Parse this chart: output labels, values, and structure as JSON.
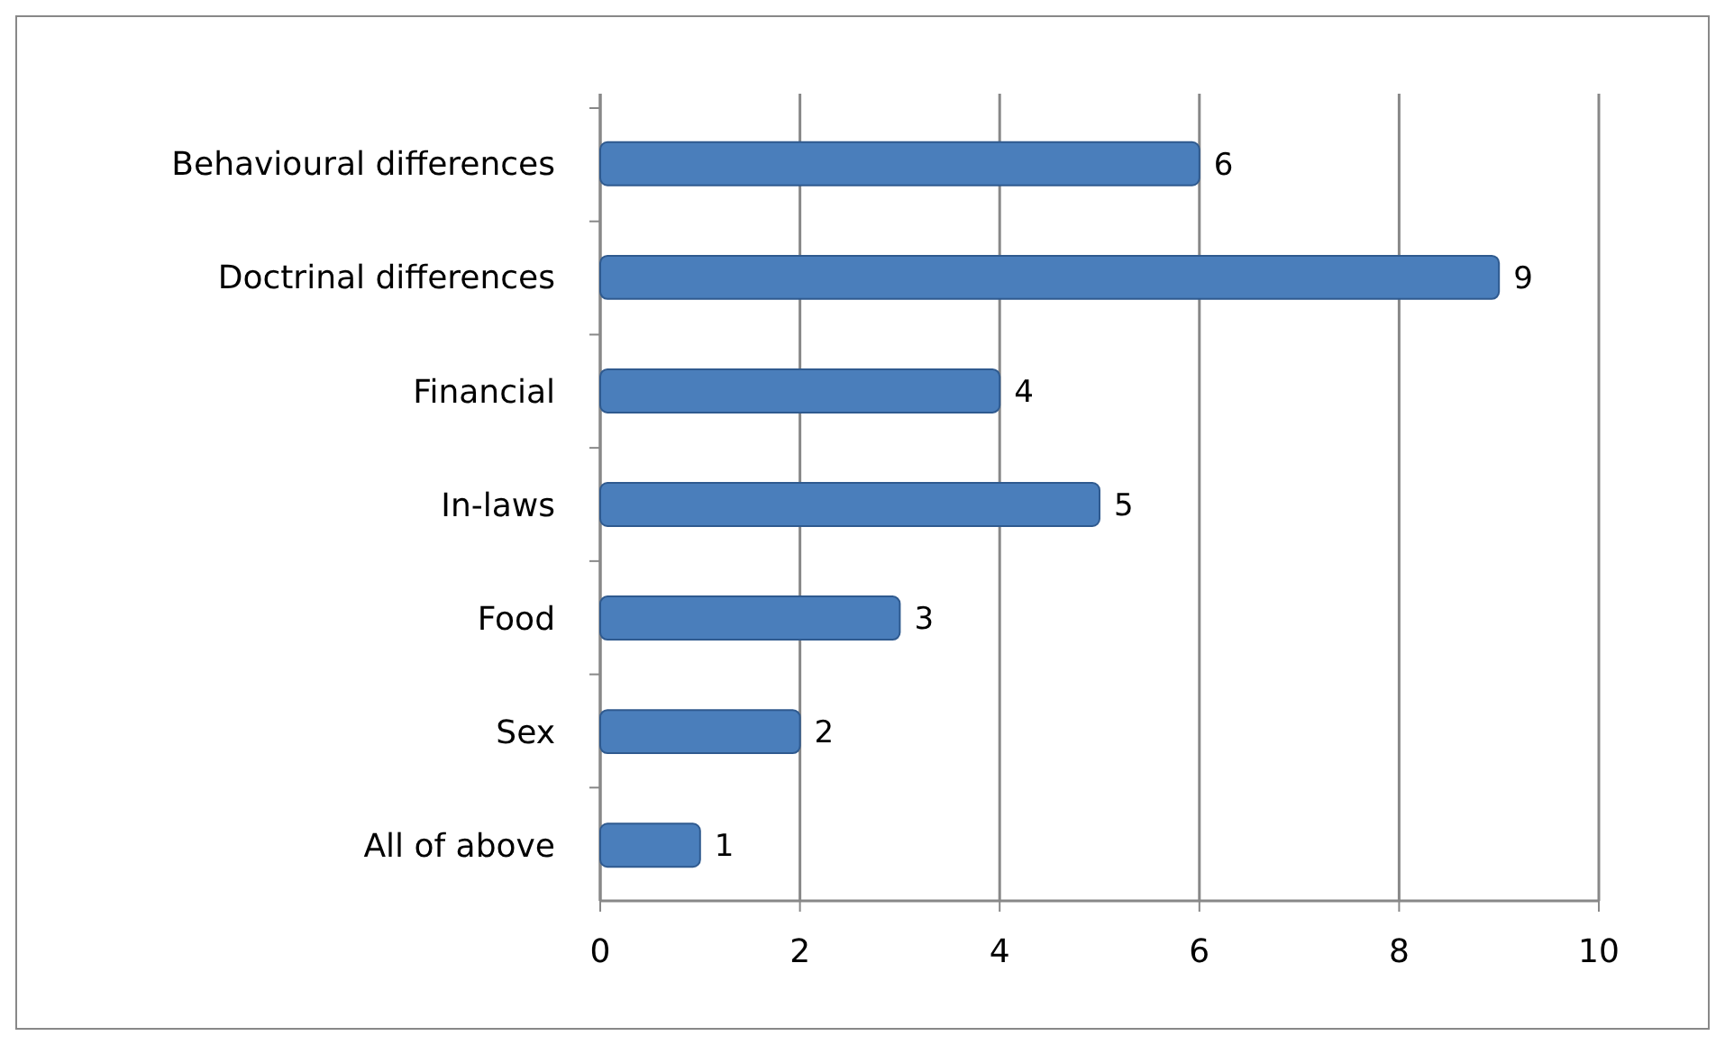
{
  "chart_data": {
    "type": "bar",
    "orientation": "horizontal",
    "categories": [
      "Behavioural differences",
      "Doctrinal differences",
      "Financial",
      "In-laws",
      "Food",
      "Sex",
      "All of above"
    ],
    "values": [
      6,
      9,
      4,
      5,
      3,
      2,
      1
    ],
    "color": "#4a7ebb",
    "xlim": [
      0,
      10
    ],
    "xticks": [
      0,
      2,
      4,
      6,
      8,
      10
    ],
    "grid": "x",
    "data_labels": true
  }
}
